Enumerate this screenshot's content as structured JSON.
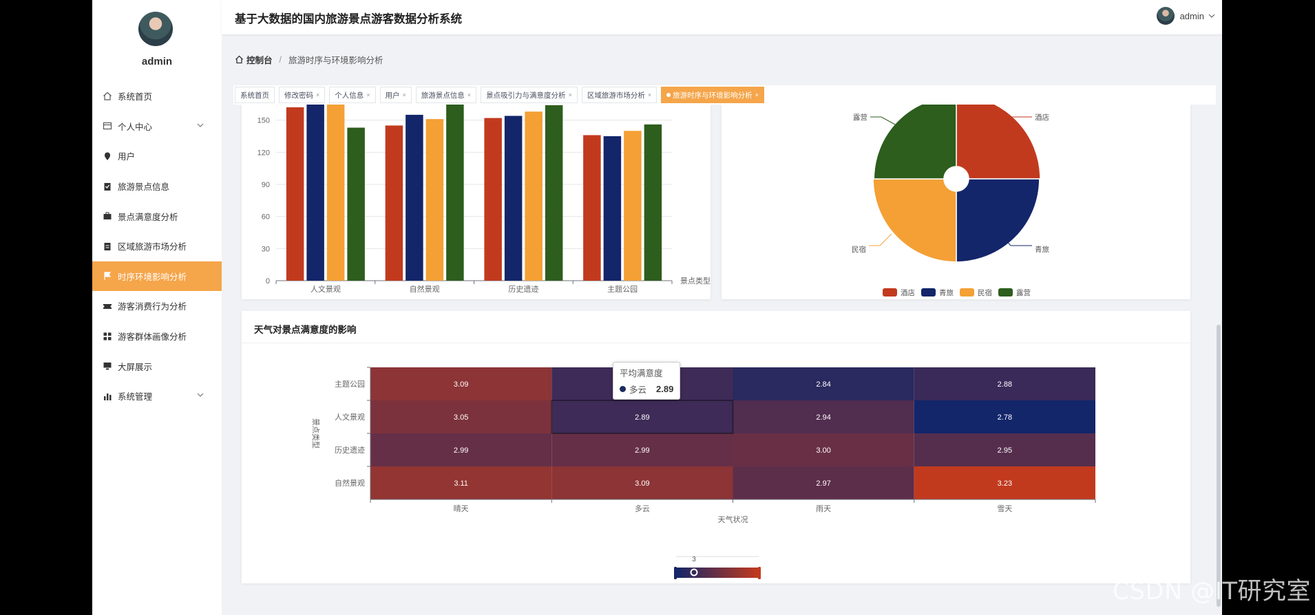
{
  "app": {
    "title": "基于大数据的国内旅游景点游客数据分析系统",
    "user": "admin"
  },
  "sidebar": {
    "username": "admin",
    "items": [
      {
        "label": "系统首页",
        "icon": "home-icon"
      },
      {
        "label": "个人中心",
        "icon": "card-icon",
        "expandable": true
      },
      {
        "label": "用户",
        "icon": "pin-icon"
      },
      {
        "label": "旅游景点信息",
        "icon": "clipboard-icon"
      },
      {
        "label": "景点满意度分析",
        "icon": "briefcase-icon"
      },
      {
        "label": "区域旅游市场分析",
        "icon": "clipboard-list-icon"
      },
      {
        "label": "时序环境影响分析",
        "icon": "flag-icon",
        "active": true
      },
      {
        "label": "游客消费行为分析",
        "icon": "ticket-icon"
      },
      {
        "label": "游客群体画像分析",
        "icon": "grid-icon"
      },
      {
        "label": "大屏展示",
        "icon": "monitor-icon"
      },
      {
        "label": "系统管理",
        "icon": "bar-chart-icon",
        "expandable": true
      }
    ]
  },
  "breadcrumb": {
    "home": "控制台",
    "current": "旅游时序与环境影响分析"
  },
  "tags": [
    {
      "label": "系统首页",
      "closable": false
    },
    {
      "label": "修改密码",
      "closable": true
    },
    {
      "label": "个人信息",
      "closable": true
    },
    {
      "label": "用户",
      "closable": true
    },
    {
      "label": "旅游景点信息",
      "closable": true
    },
    {
      "label": "景点吸引力与满意度分析",
      "closable": true
    },
    {
      "label": "区域旅游市场分析",
      "closable": true
    },
    {
      "label": "旅游时序与环境影响分析",
      "closable": true,
      "active": true
    }
  ],
  "close_glyph": "×",
  "colors": {
    "accent": "#f5a54a",
    "red": "#c23a1e",
    "navy": "#13266a",
    "orange": "#f4a035",
    "green": "#2d5e1d"
  },
  "chart_data": [
    {
      "type": "bar",
      "categories": [
        "人文景观",
        "自然景观",
        "历史遗迹",
        "主题公园"
      ],
      "xlabel": "景点类型",
      "ylim": [
        0,
        180
      ],
      "yticks": [
        0,
        30,
        60,
        90,
        120,
        150
      ],
      "series": [
        {
          "name": "酒店",
          "color": "#c23a1e",
          "values": [
            162,
            145,
            152,
            136
          ]
        },
        {
          "name": "青旅",
          "color": "#13266a",
          "values": [
            167,
            155,
            154,
            135
          ]
        },
        {
          "name": "民宿",
          "color": "#f4a035",
          "values": [
            165,
            151,
            158,
            140
          ]
        },
        {
          "name": "露营",
          "color": "#2d5e1d",
          "values": [
            143,
            177,
            164,
            146
          ]
        }
      ]
    },
    {
      "type": "pie",
      "rose": true,
      "legend_position": "bottom",
      "slices": [
        {
          "name": "酒店",
          "color": "#c23a1e",
          "value": 26
        },
        {
          "name": "青旅",
          "color": "#13266a",
          "value": 25
        },
        {
          "name": "民宿",
          "color": "#f4a035",
          "value": 25
        },
        {
          "name": "露营",
          "color": "#2d5e1d",
          "value": 24
        }
      ]
    },
    {
      "type": "heatmap",
      "title": "天气对景点满意度的影响",
      "x": [
        "晴天",
        "多云",
        "雨天",
        "雪天"
      ],
      "y": [
        "主题公园",
        "人文景观",
        "历史遗迹",
        "自然景观"
      ],
      "xlabel": "天气状况",
      "ylabel": "景点类型",
      "values": [
        [
          3.09,
          2.89,
          2.84,
          2.88
        ],
        [
          3.05,
          2.89,
          2.94,
          2.78
        ],
        [
          2.99,
          2.99,
          3.0,
          2.95
        ],
        [
          3.11,
          3.09,
          2.97,
          3.23
        ]
      ],
      "visual_map": {
        "min": 2.78,
        "max": 3.23,
        "label": "3",
        "low_color": "#13266a",
        "high_color": "#c23a1e"
      },
      "tooltip": {
        "title": "平均满意度",
        "name": "多云",
        "value": "2.89"
      }
    }
  ],
  "watermark": "CSDN @IT研究室"
}
